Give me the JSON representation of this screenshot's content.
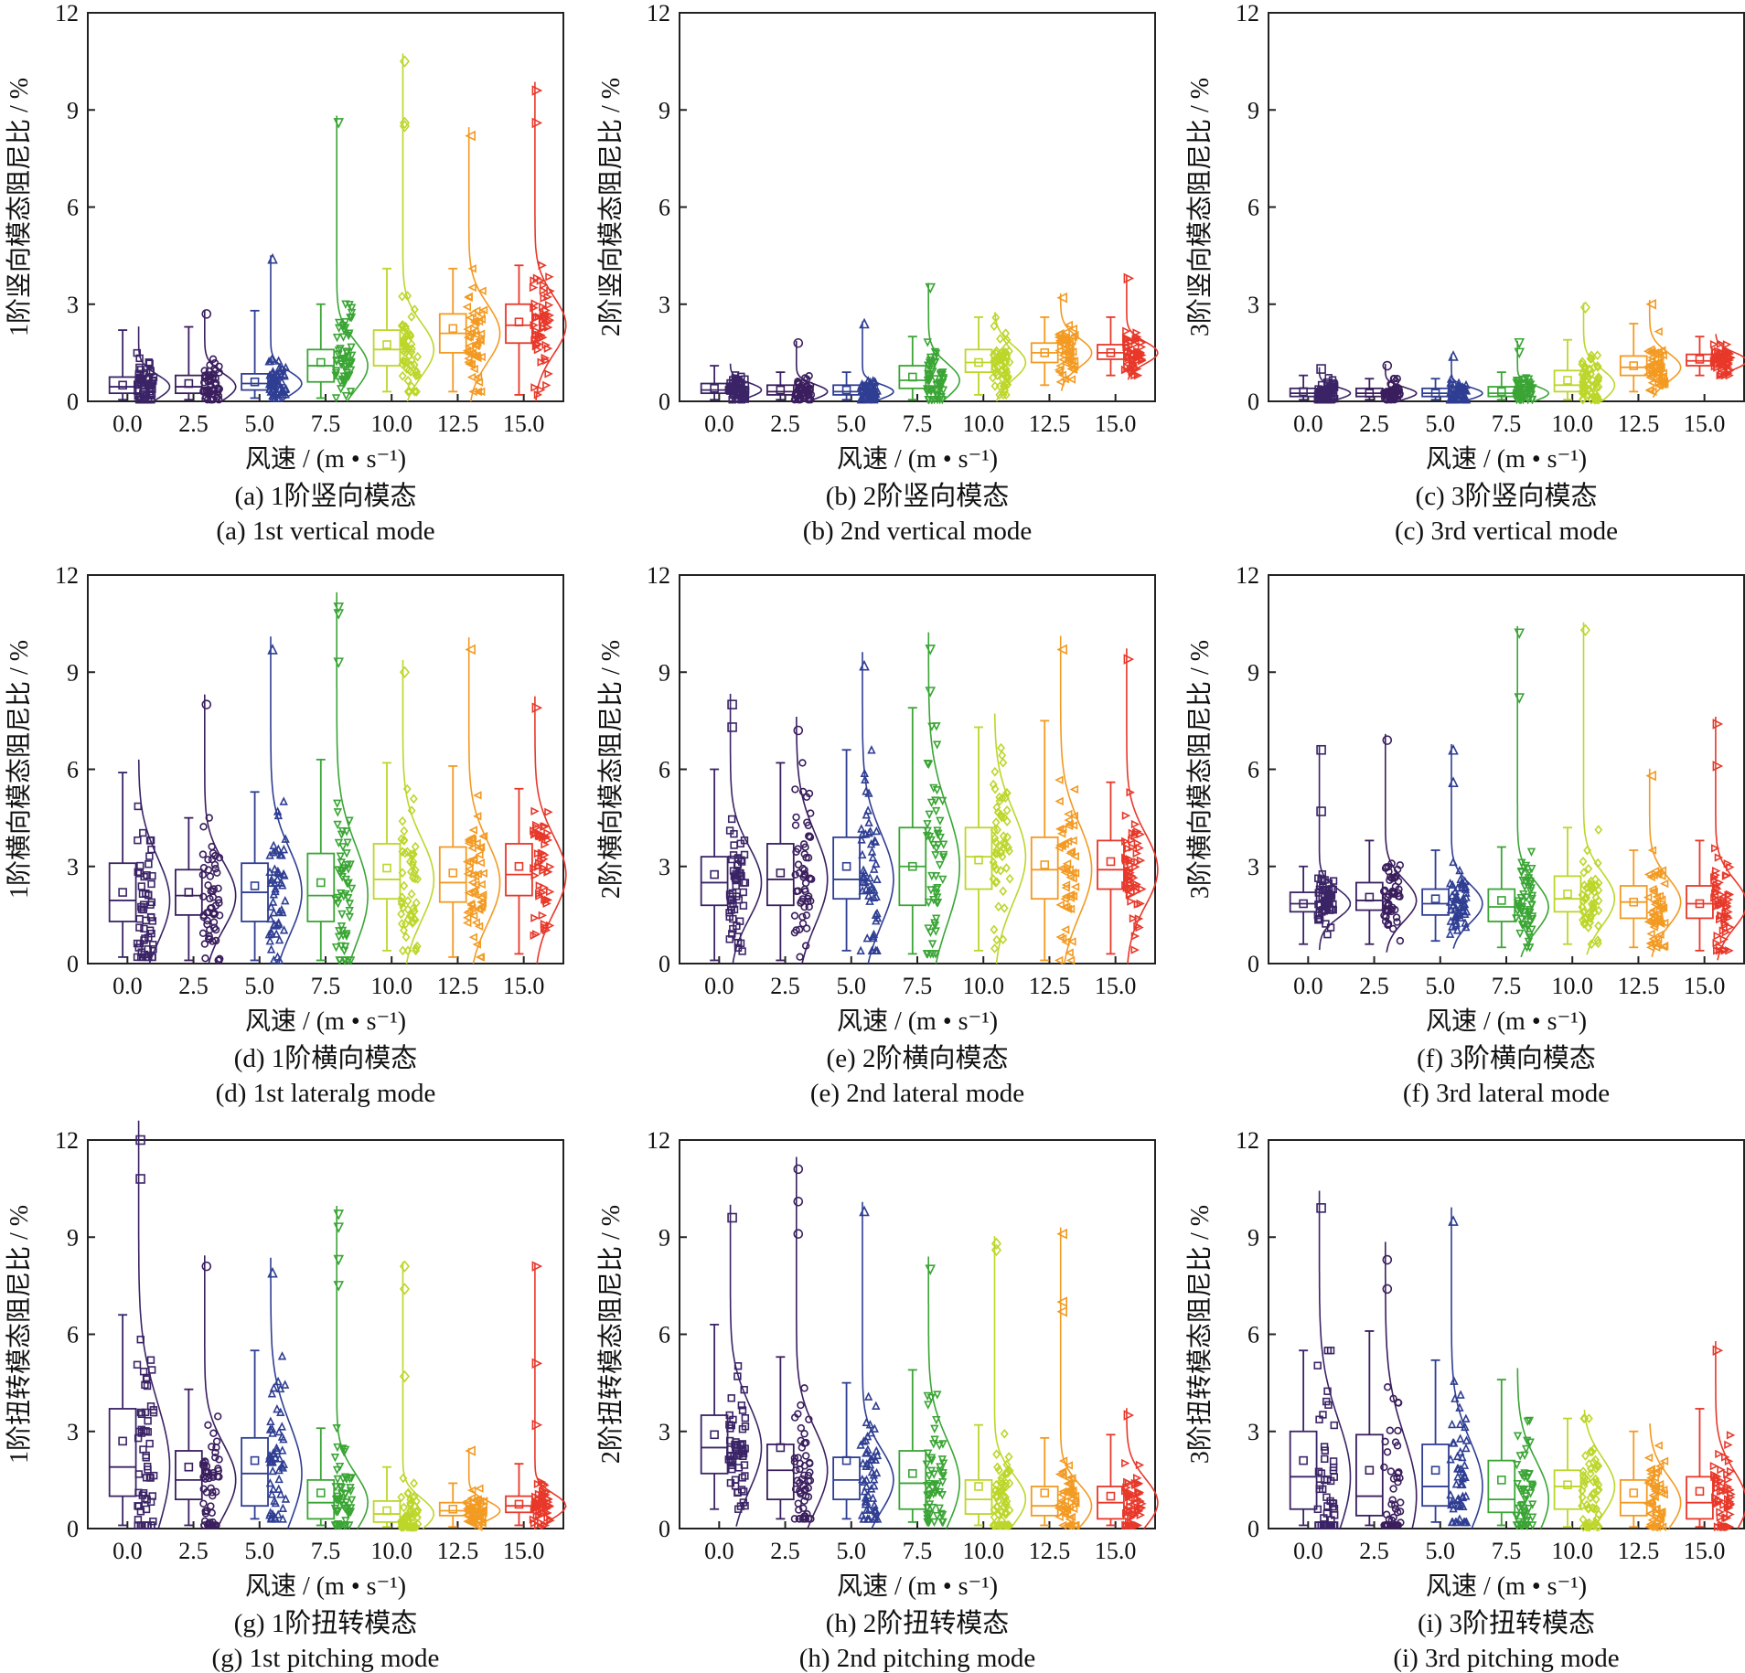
{
  "figure": {
    "colors": [
      "#3b2466",
      "#3a1e5e",
      "#2f3e93",
      "#3aa535",
      "#bdd62a",
      "#f39a22",
      "#e8382a"
    ],
    "x_ticks": [
      "0.0",
      "2.5",
      "5.0",
      "7.5",
      "10.0",
      "12.5",
      "15.0"
    ],
    "xlabel": "风速 / (m • s⁻¹)",
    "y_ticks": [
      "0",
      "3",
      "6",
      "9",
      "12"
    ]
  },
  "chart_data": [
    {
      "type": "box",
      "ylabel": "1阶竖向模态阻尼比 / %",
      "caption_cn": "(a) 1阶竖向模态",
      "caption_en": "(a) 1st vertical mode",
      "xlabel": "风速 / (m • s⁻¹)",
      "categories": [
        "0.0",
        "2.5",
        "5.0",
        "7.5",
        "10.0",
        "12.5",
        "15.0"
      ],
      "ylim": [
        0,
        12
      ],
      "boxes": [
        {
          "x": "0.0",
          "whisker_low": 0.05,
          "q1": 0.25,
          "median": 0.45,
          "q3": 0.75,
          "whisker_high": 2.2,
          "mean": 0.5,
          "outliers": []
        },
        {
          "x": "2.5",
          "whisker_low": 0.05,
          "q1": 0.25,
          "median": 0.45,
          "q3": 0.8,
          "whisker_high": 2.3,
          "mean": 0.55,
          "outliers": [
            2.7
          ]
        },
        {
          "x": "5.0",
          "whisker_low": 0.1,
          "q1": 0.35,
          "median": 0.55,
          "q3": 0.85,
          "whisker_high": 2.8,
          "mean": 0.6,
          "outliers": [
            4.4
          ]
        },
        {
          "x": "7.5",
          "whisker_low": 0.1,
          "q1": 0.6,
          "median": 1.1,
          "q3": 1.6,
          "whisker_high": 3.0,
          "mean": 1.2,
          "outliers": [
            8.6
          ]
        },
        {
          "x": "10.0",
          "whisker_low": 0.3,
          "q1": 1.1,
          "median": 1.6,
          "q3": 2.2,
          "whisker_high": 4.1,
          "mean": 1.75,
          "outliers": [
            10.5,
            8.6,
            8.5
          ]
        },
        {
          "x": "12.5",
          "whisker_low": 0.3,
          "q1": 1.5,
          "median": 2.1,
          "q3": 2.7,
          "whisker_high": 4.1,
          "mean": 2.25,
          "outliers": [
            8.2
          ]
        },
        {
          "x": "15.0",
          "whisker_low": 0.2,
          "q1": 1.8,
          "median": 2.35,
          "q3": 3.0,
          "whisker_high": 4.2,
          "mean": 2.45,
          "outliers": [
            9.6,
            8.6
          ]
        }
      ]
    },
    {
      "type": "box",
      "ylabel": "2阶竖向模态阻尼比 / %",
      "caption_cn": "(b) 2阶竖向模态",
      "caption_en": "(b) 2nd vertical mode",
      "xlabel": "风速 / (m • s⁻¹)",
      "categories": [
        "0.0",
        "2.5",
        "5.0",
        "7.5",
        "10.0",
        "12.5",
        "15.0"
      ],
      "ylim": [
        0,
        12
      ],
      "boxes": [
        {
          "x": "0.0",
          "whisker_low": 0.05,
          "q1": 0.25,
          "median": 0.35,
          "q3": 0.55,
          "whisker_high": 1.1,
          "mean": 0.4,
          "outliers": []
        },
        {
          "x": "2.5",
          "whisker_low": 0.05,
          "q1": 0.2,
          "median": 0.3,
          "q3": 0.5,
          "whisker_high": 0.9,
          "mean": 0.35,
          "outliers": [
            1.8
          ]
        },
        {
          "x": "5.0",
          "whisker_low": 0.05,
          "q1": 0.2,
          "median": 0.3,
          "q3": 0.5,
          "whisker_high": 0.9,
          "mean": 0.35,
          "outliers": [
            2.4
          ]
        },
        {
          "x": "7.5",
          "whisker_low": 0.05,
          "q1": 0.4,
          "median": 0.65,
          "q3": 1.1,
          "whisker_high": 2.0,
          "mean": 0.75,
          "outliers": [
            3.5
          ]
        },
        {
          "x": "10.0",
          "whisker_low": 0.2,
          "q1": 0.9,
          "median": 1.2,
          "q3": 1.6,
          "whisker_high": 2.6,
          "mean": 1.2,
          "outliers": []
        },
        {
          "x": "12.5",
          "whisker_low": 0.5,
          "q1": 1.2,
          "median": 1.5,
          "q3": 1.8,
          "whisker_high": 2.6,
          "mean": 1.5,
          "outliers": [
            3.2
          ]
        },
        {
          "x": "15.0",
          "whisker_low": 0.8,
          "q1": 1.3,
          "median": 1.5,
          "q3": 1.75,
          "whisker_high": 2.6,
          "mean": 1.5,
          "outliers": [
            3.8
          ]
        }
      ]
    },
    {
      "type": "box",
      "ylabel": "3阶竖向模态阻尼比 / %",
      "caption_cn": "(c) 3阶竖向模态",
      "caption_en": "(c) 3rd vertical mode",
      "xlabel": "风速 / (m • s⁻¹)",
      "categories": [
        "0.0",
        "2.5",
        "5.0",
        "7.5",
        "10.0",
        "12.5",
        "15.0"
      ],
      "ylim": [
        0,
        12
      ],
      "boxes": [
        {
          "x": "0.0",
          "whisker_low": 0.05,
          "q1": 0.15,
          "median": 0.25,
          "q3": 0.4,
          "whisker_high": 0.8,
          "mean": 0.3,
          "outliers": [
            1.0
          ]
        },
        {
          "x": "2.5",
          "whisker_low": 0.05,
          "q1": 0.15,
          "median": 0.25,
          "q3": 0.4,
          "whisker_high": 0.7,
          "mean": 0.25,
          "outliers": [
            1.1
          ]
        },
        {
          "x": "5.0",
          "whisker_low": 0.05,
          "q1": 0.15,
          "median": 0.25,
          "q3": 0.4,
          "whisker_high": 0.7,
          "mean": 0.25,
          "outliers": [
            1.4
          ]
        },
        {
          "x": "7.5",
          "whisker_low": 0.05,
          "q1": 0.15,
          "median": 0.25,
          "q3": 0.45,
          "whisker_high": 0.9,
          "mean": 0.3,
          "outliers": [
            1.8,
            1.5
          ]
        },
        {
          "x": "10.0",
          "whisker_low": 0.05,
          "q1": 0.3,
          "median": 0.5,
          "q3": 0.95,
          "whisker_high": 1.9,
          "mean": 0.65,
          "outliers": [
            2.9
          ]
        },
        {
          "x": "12.5",
          "whisker_low": 0.3,
          "q1": 0.8,
          "median": 1.05,
          "q3": 1.4,
          "whisker_high": 2.4,
          "mean": 1.1,
          "outliers": [
            3.0
          ]
        },
        {
          "x": "15.0",
          "whisker_low": 0.8,
          "q1": 1.1,
          "median": 1.25,
          "q3": 1.45,
          "whisker_high": 2.0,
          "mean": 1.3,
          "outliers": []
        }
      ]
    },
    {
      "type": "box",
      "ylabel": "1阶横向模态阻尼比 / %",
      "caption_cn": "(d) 1阶横向模态",
      "caption_en": "(d) 1st lateralg mode",
      "xlabel": "风速 / (m • s⁻¹)",
      "categories": [
        "0.0",
        "2.5",
        "5.0",
        "7.5",
        "10.0",
        "12.5",
        "15.0"
      ],
      "ylim": [
        0,
        12
      ],
      "boxes": [
        {
          "x": "0.0",
          "whisker_low": 0.2,
          "q1": 1.3,
          "median": 1.95,
          "q3": 3.1,
          "whisker_high": 5.9,
          "mean": 2.2,
          "outliers": []
        },
        {
          "x": "2.5",
          "whisker_low": 0.1,
          "q1": 1.5,
          "median": 2.1,
          "q3": 2.9,
          "whisker_high": 4.5,
          "mean": 2.2,
          "outliers": [
            8.0
          ]
        },
        {
          "x": "5.0",
          "whisker_low": 0.1,
          "q1": 1.3,
          "median": 2.2,
          "q3": 3.1,
          "whisker_high": 5.3,
          "mean": 2.4,
          "outliers": [
            9.7
          ]
        },
        {
          "x": "7.5",
          "whisker_low": 0.1,
          "q1": 1.3,
          "median": 2.1,
          "q3": 3.4,
          "whisker_high": 6.3,
          "mean": 2.5,
          "outliers": [
            11.0,
            10.8,
            9.3
          ]
        },
        {
          "x": "10.0",
          "whisker_low": 0.4,
          "q1": 2.0,
          "median": 2.6,
          "q3": 3.7,
          "whisker_high": 6.2,
          "mean": 2.95,
          "outliers": [
            9.0
          ]
        },
        {
          "x": "12.5",
          "whisker_low": 0.2,
          "q1": 1.9,
          "median": 2.5,
          "q3": 3.6,
          "whisker_high": 6.1,
          "mean": 2.8,
          "outliers": [
            9.7
          ]
        },
        {
          "x": "15.0",
          "whisker_low": 0.3,
          "q1": 2.1,
          "median": 2.75,
          "q3": 3.7,
          "whisker_high": 5.4,
          "mean": 3.0,
          "outliers": [
            7.9
          ]
        }
      ]
    },
    {
      "type": "box",
      "ylabel": "2阶横向模态阻尼比 / %",
      "caption_cn": "(e) 2阶横向模态",
      "caption_en": "(e) 2nd lateral mode",
      "xlabel": "风速 / (m • s⁻¹)",
      "categories": [
        "0.0",
        "2.5",
        "5.0",
        "7.5",
        "10.0",
        "12.5",
        "15.0"
      ],
      "ylim": [
        0,
        12
      ],
      "boxes": [
        {
          "x": "0.0",
          "whisker_low": 0.1,
          "q1": 1.8,
          "median": 2.5,
          "q3": 3.3,
          "whisker_high": 6.0,
          "mean": 2.75,
          "outliers": [
            8.0,
            7.3
          ]
        },
        {
          "x": "2.5",
          "whisker_low": 0.1,
          "q1": 1.8,
          "median": 2.6,
          "q3": 3.7,
          "whisker_high": 6.2,
          "mean": 2.8,
          "outliers": [
            7.2
          ]
        },
        {
          "x": "5.0",
          "whisker_low": 0.4,
          "q1": 2.0,
          "median": 2.6,
          "q3": 3.9,
          "whisker_high": 6.6,
          "mean": 3.0,
          "outliers": [
            9.2
          ]
        },
        {
          "x": "7.5",
          "whisker_low": 0.3,
          "q1": 1.8,
          "median": 3.0,
          "q3": 4.2,
          "whisker_high": 7.9,
          "mean": 3.0,
          "outliers": [
            9.7,
            8.4
          ]
        },
        {
          "x": "10.0",
          "whisker_low": 0.4,
          "q1": 2.3,
          "median": 3.3,
          "q3": 4.2,
          "whisker_high": 7.3,
          "mean": 3.2,
          "outliers": []
        },
        {
          "x": "12.5",
          "whisker_low": 0.1,
          "q1": 2.0,
          "median": 2.9,
          "q3": 3.9,
          "whisker_high": 7.5,
          "mean": 3.05,
          "outliers": [
            9.7
          ]
        },
        {
          "x": "15.0",
          "whisker_low": 0.3,
          "q1": 2.3,
          "median": 2.9,
          "q3": 3.8,
          "whisker_high": 5.6,
          "mean": 3.15,
          "outliers": [
            9.4
          ]
        }
      ]
    },
    {
      "type": "box",
      "ylabel": "3阶横向模态阻尼比 / %",
      "caption_cn": "(f) 3阶横向模态",
      "caption_en": "(f) 3rd lateral mode",
      "xlabel": "风速 / (m • s⁻¹)",
      "categories": [
        "0.0",
        "2.5",
        "5.0",
        "7.5",
        "10.0",
        "12.5",
        "15.0"
      ],
      "ylim": [
        0,
        12
      ],
      "boxes": [
        {
          "x": "0.0",
          "whisker_low": 0.6,
          "q1": 1.6,
          "median": 1.85,
          "q3": 2.2,
          "whisker_high": 3.0,
          "mean": 1.85,
          "outliers": [
            6.6,
            4.7
          ]
        },
        {
          "x": "2.5",
          "whisker_low": 0.6,
          "q1": 1.65,
          "median": 1.95,
          "q3": 2.5,
          "whisker_high": 3.8,
          "mean": 2.05,
          "outliers": [
            6.9
          ]
        },
        {
          "x": "5.0",
          "whisker_low": 0.7,
          "q1": 1.5,
          "median": 1.85,
          "q3": 2.3,
          "whisker_high": 3.5,
          "mean": 2.0,
          "outliers": [
            6.6,
            5.6
          ]
        },
        {
          "x": "7.5",
          "whisker_low": 0.5,
          "q1": 1.3,
          "median": 1.75,
          "q3": 2.3,
          "whisker_high": 3.6,
          "mean": 1.95,
          "outliers": [
            10.2,
            8.2
          ]
        },
        {
          "x": "10.0",
          "whisker_low": 0.6,
          "q1": 1.6,
          "median": 2.0,
          "q3": 2.7,
          "whisker_high": 4.2,
          "mean": 2.15,
          "outliers": [
            10.3
          ]
        },
        {
          "x": "12.5",
          "whisker_low": 0.5,
          "q1": 1.4,
          "median": 1.9,
          "q3": 2.4,
          "whisker_high": 3.5,
          "mean": 1.9,
          "outliers": [
            5.8
          ]
        },
        {
          "x": "15.0",
          "whisker_low": 0.4,
          "q1": 1.4,
          "median": 1.85,
          "q3": 2.4,
          "whisker_high": 3.8,
          "mean": 1.85,
          "outliers": [
            7.4,
            6.1
          ]
        }
      ]
    },
    {
      "type": "box",
      "ylabel": "1阶扭转模态阻尼比 / %",
      "caption_cn": "(g) 1阶扭转模态",
      "caption_en": "(g) 1st pitching mode",
      "xlabel": "风速 / (m • s⁻¹)",
      "categories": [
        "0.0",
        "2.5",
        "5.0",
        "7.5",
        "10.0",
        "12.5",
        "15.0"
      ],
      "ylim": [
        0,
        12
      ],
      "boxes": [
        {
          "x": "0.0",
          "whisker_low": 0.1,
          "q1": 1.0,
          "median": 1.9,
          "q3": 3.7,
          "whisker_high": 6.6,
          "mean": 2.7,
          "outliers": [
            12.0,
            10.8
          ]
        },
        {
          "x": "2.5",
          "whisker_low": 0.1,
          "q1": 0.9,
          "median": 1.5,
          "q3": 2.4,
          "whisker_high": 4.3,
          "mean": 1.9,
          "outliers": [
            8.1
          ]
        },
        {
          "x": "5.0",
          "whisker_low": 0.3,
          "q1": 0.7,
          "median": 1.7,
          "q3": 2.8,
          "whisker_high": 5.5,
          "mean": 2.1,
          "outliers": [
            7.9
          ]
        },
        {
          "x": "7.5",
          "whisker_low": 0.1,
          "q1": 0.3,
          "median": 0.8,
          "q3": 1.5,
          "whisker_high": 3.1,
          "mean": 1.1,
          "outliers": [
            9.7,
            9.3,
            8.3,
            7.5
          ]
        },
        {
          "x": "10.0",
          "whisker_low": 0.05,
          "q1": 0.2,
          "median": 0.45,
          "q3": 0.85,
          "whisker_high": 1.9,
          "mean": 0.55,
          "outliers": [
            8.1,
            7.4,
            4.7
          ]
        },
        {
          "x": "12.5",
          "whisker_low": 0.05,
          "q1": 0.4,
          "median": 0.55,
          "q3": 0.8,
          "whisker_high": 1.4,
          "mean": 0.6,
          "outliers": [
            2.4
          ]
        },
        {
          "x": "15.0",
          "whisker_low": 0.1,
          "q1": 0.5,
          "median": 0.7,
          "q3": 1.0,
          "whisker_high": 2.0,
          "mean": 0.75,
          "outliers": [
            8.1,
            5.1,
            3.2
          ]
        }
      ]
    },
    {
      "type": "box",
      "ylabel": "2阶扭转模态阻尼比 / %",
      "caption_cn": "(h) 2阶扭转模态",
      "caption_en": "(h) 2nd pitching mode",
      "xlabel": "风速 / (m • s⁻¹)",
      "categories": [
        "0.0",
        "2.5",
        "5.0",
        "7.5",
        "10.0",
        "12.5",
        "15.0"
      ],
      "ylim": [
        0,
        12
      ],
      "boxes": [
        {
          "x": "0.0",
          "whisker_low": 0.6,
          "q1": 1.7,
          "median": 2.5,
          "q3": 3.5,
          "whisker_high": 6.3,
          "mean": 2.9,
          "outliers": [
            9.6
          ]
        },
        {
          "x": "2.5",
          "whisker_low": 0.3,
          "q1": 0.9,
          "median": 1.8,
          "q3": 2.6,
          "whisker_high": 5.3,
          "mean": 2.5,
          "outliers": [
            11.1,
            10.1,
            9.1
          ]
        },
        {
          "x": "5.0",
          "whisker_low": 0.3,
          "q1": 0.9,
          "median": 1.5,
          "q3": 2.2,
          "whisker_high": 4.5,
          "mean": 2.1,
          "outliers": [
            9.8
          ]
        },
        {
          "x": "7.5",
          "whisker_low": 0.2,
          "q1": 0.6,
          "median": 1.4,
          "q3": 2.4,
          "whisker_high": 4.9,
          "mean": 1.7,
          "outliers": [
            8.0
          ]
        },
        {
          "x": "10.0",
          "whisker_low": 0.1,
          "q1": 0.45,
          "median": 0.9,
          "q3": 1.5,
          "whisker_high": 3.2,
          "mean": 1.3,
          "outliers": [
            8.8,
            8.6
          ]
        },
        {
          "x": "12.5",
          "whisker_low": 0.1,
          "q1": 0.4,
          "median": 0.7,
          "q3": 1.3,
          "whisker_high": 2.8,
          "mean": 1.1,
          "outliers": [
            9.1,
            7.0,
            6.7
          ]
        },
        {
          "x": "15.0",
          "whisker_low": 0.1,
          "q1": 0.3,
          "median": 0.8,
          "q3": 1.3,
          "whisker_high": 2.9,
          "mean": 1.0,
          "outliers": [
            3.5
          ]
        }
      ]
    },
    {
      "type": "box",
      "ylabel": "3阶扭转模态阻尼比 / %",
      "caption_cn": "(i) 3阶扭转模态",
      "caption_en": "(i) 3rd pitching mode",
      "xlabel": "风速 / (m • s⁻¹)",
      "categories": [
        "0.0",
        "2.5",
        "5.0",
        "7.5",
        "10.0",
        "12.5",
        "15.0"
      ],
      "ylim": [
        0,
        12
      ],
      "boxes": [
        {
          "x": "0.0",
          "whisker_low": 0.1,
          "q1": 0.6,
          "median": 1.6,
          "q3": 3.0,
          "whisker_high": 5.5,
          "mean": 2.1,
          "outliers": [
            9.9
          ]
        },
        {
          "x": "2.5",
          "whisker_low": 0.1,
          "q1": 0.4,
          "median": 1.0,
          "q3": 2.9,
          "whisker_high": 6.1,
          "mean": 1.8,
          "outliers": [
            8.3,
            7.4
          ]
        },
        {
          "x": "5.0",
          "whisker_low": 0.2,
          "q1": 0.7,
          "median": 1.3,
          "q3": 2.6,
          "whisker_high": 5.2,
          "mean": 1.8,
          "outliers": [
            9.5
          ]
        },
        {
          "x": "7.5",
          "whisker_low": 0.1,
          "q1": 0.5,
          "median": 0.9,
          "q3": 2.1,
          "whisker_high": 4.6,
          "mean": 1.5,
          "outliers": []
        },
        {
          "x": "10.0",
          "whisker_low": 0.05,
          "q1": 0.6,
          "median": 1.3,
          "q3": 1.8,
          "whisker_high": 3.4,
          "mean": 1.35,
          "outliers": []
        },
        {
          "x": "12.5",
          "whisker_low": 0.05,
          "q1": 0.4,
          "median": 0.8,
          "q3": 1.5,
          "whisker_high": 3.0,
          "mean": 1.1,
          "outliers": []
        },
        {
          "x": "15.0",
          "whisker_low": 0.05,
          "q1": 0.3,
          "median": 0.8,
          "q3": 1.6,
          "whisker_high": 3.7,
          "mean": 1.15,
          "outliers": [
            5.5
          ]
        }
      ]
    }
  ]
}
